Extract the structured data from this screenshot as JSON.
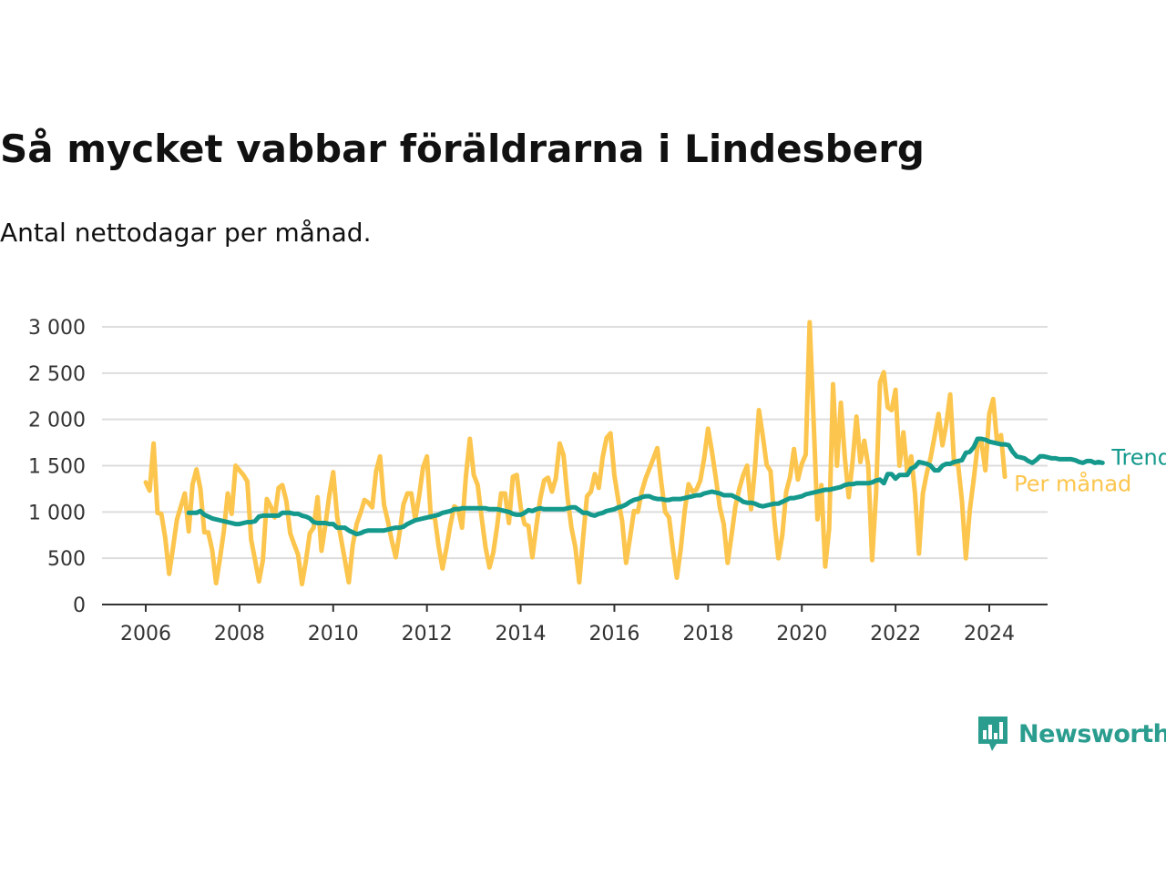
{
  "title": "Så mycket vabbar föräldrarna i Lindesberg",
  "subtitle": "Antal nettodagar per månad.",
  "brand": {
    "name": "Newsworthy",
    "icon": "bar-chart-speech-bubble-icon"
  },
  "colors": {
    "trend": "#14998c",
    "monthly": "#fcc54d",
    "grid": "#dddddd",
    "axis": "#333333"
  },
  "chart_data": {
    "type": "line",
    "ylim": [
      0,
      3000
    ],
    "xlim": [
      2006,
      2024.7
    ],
    "yticks": [
      {
        "value": 0,
        "label": "0"
      },
      {
        "value": 500,
        "label": "500"
      },
      {
        "value": 1000,
        "label": "1 000"
      },
      {
        "value": 1500,
        "label": "1 500"
      },
      {
        "value": 2000,
        "label": "2 000"
      },
      {
        "value": 2500,
        "label": "2 500"
      },
      {
        "value": 3000,
        "label": "3 000"
      }
    ],
    "xticks": [
      {
        "value": 2006,
        "label": "2006"
      },
      {
        "value": 2008,
        "label": "2008"
      },
      {
        "value": 2010,
        "label": "2010"
      },
      {
        "value": 2012,
        "label": "2012"
      },
      {
        "value": 2014,
        "label": "2014"
      },
      {
        "value": 2016,
        "label": "2016"
      },
      {
        "value": 2018,
        "label": "2018"
      },
      {
        "value": 2020,
        "label": "2020"
      },
      {
        "value": 2022,
        "label": "2022"
      },
      {
        "value": 2024,
        "label": "2024"
      }
    ],
    "grid": true,
    "series": [
      {
        "name": "Per månad",
        "color": "#fcc54d",
        "start": 2006,
        "step": 0.0833333,
        "values": [
          1320,
          1230,
          1740,
          990,
          980,
          720,
          330,
          620,
          920,
          1060,
          1200,
          790,
          1300,
          1460,
          1250,
          780,
          780,
          590,
          230,
          500,
          790,
          1200,
          980,
          1500,
          1450,
          1400,
          1330,
          700,
          480,
          250,
          480,
          1140,
          1060,
          940,
          1260,
          1290,
          1120,
          770,
          650,
          540,
          220,
          470,
          770,
          830,
          1160,
          580,
          860,
          1180,
          1430,
          950,
          710,
          480,
          240,
          640,
          870,
          990,
          1130,
          1100,
          1050,
          1440,
          1600,
          1080,
          900,
          690,
          510,
          780,
          1080,
          1200,
          1200,
          920,
          1170,
          1480,
          1600,
          940,
          950,
          630,
          390,
          610,
          860,
          1060,
          1030,
          830,
          1390,
          1790,
          1400,
          1290,
          940,
          620,
          400,
          560,
          850,
          1200,
          1200,
          880,
          1380,
          1400,
          1050,
          870,
          850,
          510,
          840,
          1140,
          1340,
          1370,
          1220,
          1360,
          1740,
          1610,
          1160,
          830,
          620,
          240,
          720,
          1170,
          1220,
          1410,
          1260,
          1590,
          1800,
          1850,
          1400,
          1130,
          900,
          450,
          720,
          1010,
          1000,
          1220,
          1360,
          1470,
          1580,
          1690,
          1320,
          1000,
          940,
          600,
          290,
          600,
          1010,
          1300,
          1220,
          1240,
          1340,
          1580,
          1900,
          1650,
          1360,
          1050,
          870,
          450,
          750,
          1060,
          1250,
          1400,
          1500,
          1030,
          1480,
          2100,
          1820,
          1510,
          1440,
          900,
          500,
          750,
          1220,
          1380,
          1680,
          1350,
          1520,
          1620,
          3050,
          2000,
          920,
          1290,
          410,
          820,
          2380,
          1500,
          2180,
          1590,
          1160,
          1550,
          2030,
          1540,
          1770,
          1500,
          480,
          1200,
          2400,
          2510,
          2130,
          2100,
          2320,
          1500,
          1860,
          1420,
          1600,
          1200,
          550,
          1200,
          1420,
          1590,
          1820,
          2060,
          1720,
          1950,
          2270,
          1520,
          1520,
          1120,
          500,
          1020,
          1350,
          1710,
          1760,
          1450,
          2060,
          2220,
          1750,
          1830,
          1380
        ]
      },
      {
        "name": "Trend",
        "color": "#14998c",
        "start": 2006.9167,
        "step": 0.0833333,
        "values": [
          990,
          990,
          990,
          1010,
          970,
          950,
          930,
          920,
          910,
          900,
          890,
          880,
          870,
          870,
          880,
          890,
          890,
          900,
          950,
          960,
          960,
          960,
          960,
          960,
          990,
          990,
          990,
          980,
          980,
          960,
          950,
          930,
          890,
          880,
          880,
          880,
          870,
          870,
          830,
          830,
          830,
          800,
          780,
          760,
          770,
          790,
          800,
          800,
          800,
          800,
          800,
          810,
          820,
          830,
          830,
          840,
          870,
          890,
          910,
          920,
          930,
          940,
          950,
          960,
          970,
          990,
          1000,
          1010,
          1030,
          1030,
          1040,
          1040,
          1040,
          1040,
          1040,
          1040,
          1040,
          1030,
          1030,
          1030,
          1020,
          1010,
          1000,
          980,
          970,
          970,
          990,
          1020,
          1010,
          1030,
          1040,
          1030,
          1030,
          1030,
          1030,
          1030,
          1030,
          1040,
          1050,
          1050,
          1020,
          990,
          990,
          970,
          960,
          980,
          990,
          1010,
          1020,
          1030,
          1050,
          1060,
          1080,
          1110,
          1130,
          1140,
          1160,
          1170,
          1170,
          1150,
          1140,
          1140,
          1130,
          1130,
          1140,
          1140,
          1140,
          1150,
          1160,
          1170,
          1180,
          1180,
          1200,
          1210,
          1220,
          1210,
          1200,
          1180,
          1180,
          1180,
          1160,
          1140,
          1110,
          1100,
          1100,
          1090,
          1070,
          1060,
          1070,
          1080,
          1090,
          1090,
          1110,
          1130,
          1150,
          1150,
          1160,
          1170,
          1190,
          1200,
          1210,
          1220,
          1230,
          1240,
          1240,
          1250,
          1260,
          1270,
          1290,
          1300,
          1300,
          1310,
          1310,
          1310,
          1310,
          1320,
          1340,
          1350,
          1310,
          1410,
          1410,
          1360,
          1400,
          1400,
          1400,
          1470,
          1490,
          1540,
          1530,
          1520,
          1500,
          1450,
          1450,
          1500,
          1520,
          1520,
          1540,
          1550,
          1560,
          1640,
          1650,
          1700,
          1790,
          1790,
          1780,
          1760,
          1750,
          1740,
          1730,
          1730,
          1720,
          1650,
          1600,
          1590,
          1580,
          1550,
          1530,
          1560,
          1600,
          1600,
          1590,
          1580,
          1580,
          1570,
          1570,
          1570,
          1570,
          1560,
          1540,
          1530,
          1550,
          1550,
          1530,
          1540,
          1530
        ]
      }
    ]
  }
}
